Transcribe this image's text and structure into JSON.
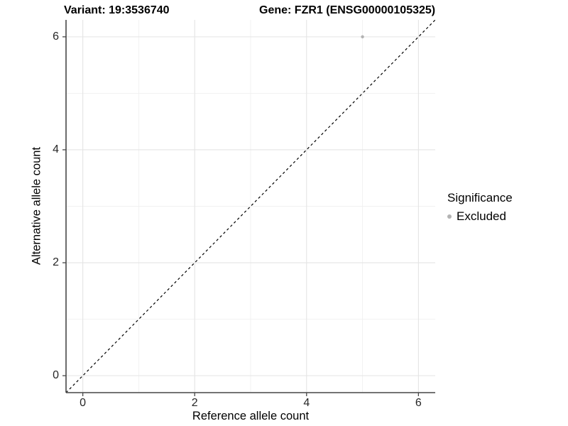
{
  "figure": {
    "title_left": "Variant: 19:3536740",
    "title_right": "Gene: FZR1 (ENSG00000105325)"
  },
  "chart_data": {
    "type": "scatter",
    "title": "Variant: 19:3536740    Gene: FZR1 (ENSG00000105325)",
    "xlabel": "Reference allele count",
    "ylabel": "Alternative allele count",
    "xlim": [
      -0.3,
      6.3
    ],
    "ylim": [
      -0.3,
      6.3
    ],
    "x_ticks": {
      "major": [
        0,
        2,
        4,
        6
      ],
      "minor": [
        1,
        3,
        5
      ]
    },
    "y_ticks": {
      "major": [
        0,
        2,
        4,
        6
      ],
      "minor": [
        1,
        3,
        5
      ]
    },
    "grid": "on",
    "series": [
      {
        "name": "Excluded",
        "marker_color": "#b3b3b3",
        "points": [
          {
            "x": 5,
            "y": 6
          }
        ]
      }
    ],
    "reference_line": {
      "type": "identity",
      "style": "dashed",
      "color": "#000000",
      "from": [
        -0.3,
        -0.3
      ],
      "to": [
        6.3,
        6.3
      ]
    },
    "legend": {
      "title": "Significance",
      "position": "right",
      "items": [
        {
          "label": "Excluded",
          "marker_color": "#b3b3b3"
        }
      ]
    },
    "colors": {
      "grid_major": "#e4e4e4",
      "grid_minor": "#f0f0f0",
      "axis_line": "#474747",
      "tick_mark": "#474747",
      "tick_text": "#262626"
    }
  }
}
